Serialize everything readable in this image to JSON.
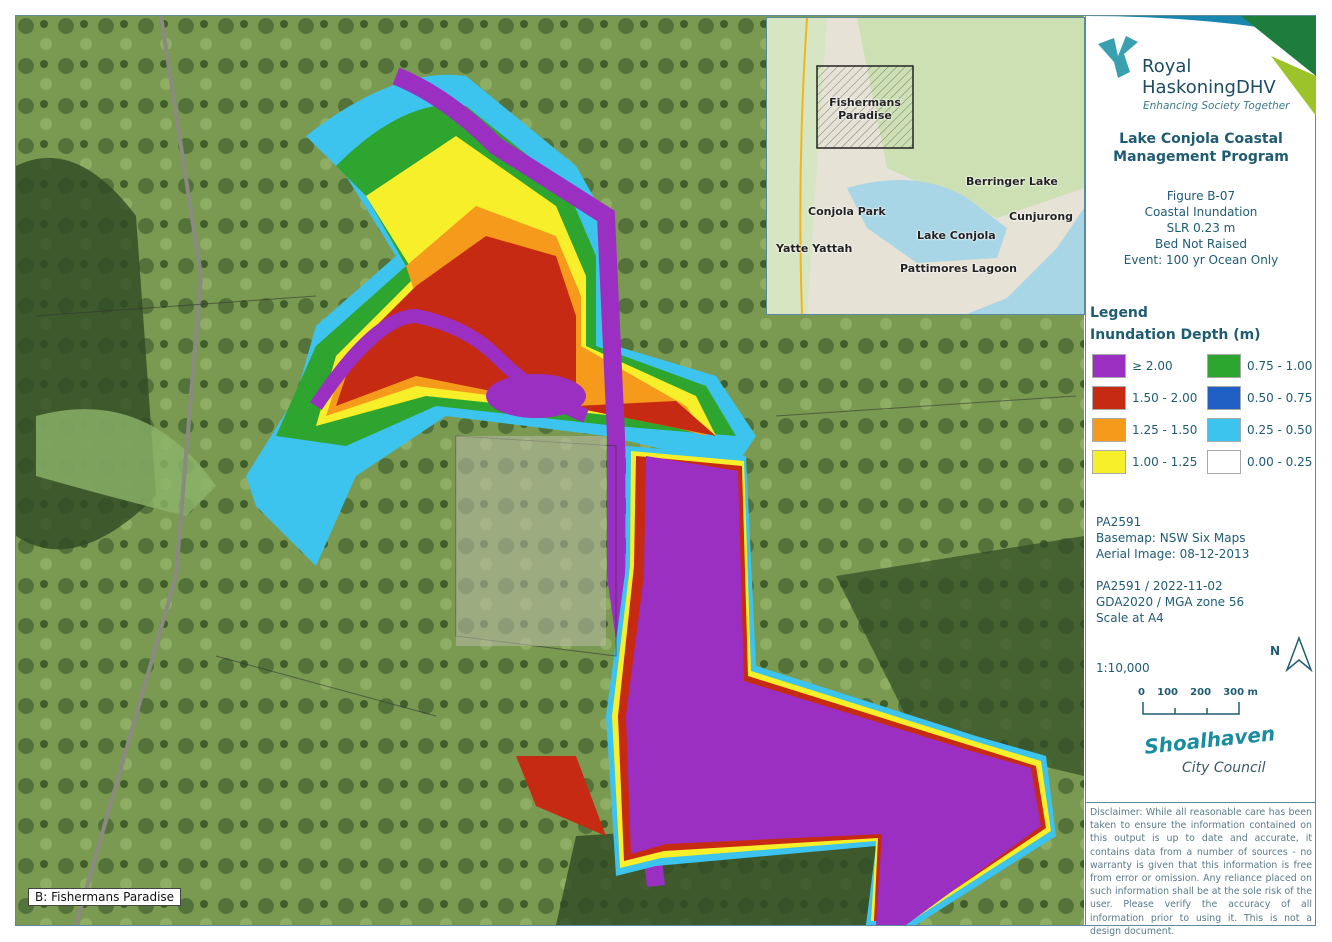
{
  "map": {
    "label": "B: Fishermans Paradise"
  },
  "inset": {
    "labels": [
      "Fishermans Paradise",
      "Berringer Lake",
      "Conjola Park",
      "Cunjurong",
      "Lake Conjola",
      "Yatte Yattah",
      "Pattimores Lagoon"
    ]
  },
  "logo": {
    "line1": "Royal",
    "line2": "HaskoningDHV",
    "tagline": "Enhancing Society Together"
  },
  "title": {
    "line1": "Lake Conjola Coastal",
    "line2": "Management Program"
  },
  "figure": {
    "lines": [
      "Figure B-07",
      "Coastal Inundation",
      "SLR 0.23 m",
      "Bed Not Raised",
      "Event: 100 yr Ocean Only"
    ]
  },
  "legend": {
    "heading": "Legend",
    "subheading": "Inundation Depth (m)",
    "items": [
      {
        "label": "≥ 2.00",
        "color": "#9b2fc2"
      },
      {
        "label": "1.50 - 2.00",
        "color": "#c62a12"
      },
      {
        "label": "1.25 - 1.50",
        "color": "#f59a1a"
      },
      {
        "label": "1.00 - 1.25",
        "color": "#f6ef2a"
      },
      {
        "label": "0.75 - 1.00",
        "color": "#2ea52e"
      },
      {
        "label": "0.50 - 0.75",
        "color": "#1f5fc4"
      },
      {
        "label": "0.25  - 0.50",
        "color": "#3cc4ee"
      },
      {
        "label": "0.00 - 0.25",
        "color": "#ffffff"
      }
    ]
  },
  "meta": {
    "lines1": [
      "PA2591",
      "Basemap: NSW Six Maps",
      "Aerial Image: 08-12-2013"
    ],
    "lines2": [
      "PA2591 / 2022-11-02",
      "GDA2020 / MGA zone 56",
      "Scale at A4"
    ],
    "scale_ratio": "1:10,000"
  },
  "north": "N",
  "scalebar": {
    "ticks": [
      "0",
      "100",
      "200",
      "300 m"
    ]
  },
  "council": {
    "line1": "Shoalhaven",
    "line2": "City Council"
  },
  "disclaimer": "Disclaimer: While all reasonable care has been taken to ensure the information contained on this output is up to date and accurate, it contains data from a number of sources - no warranty is given that this information is free from error or omission. Any reliance placed on such information shall be at the sole risk of the user. Please verify the accuracy of all information prior to using it. This is not a design document."
}
